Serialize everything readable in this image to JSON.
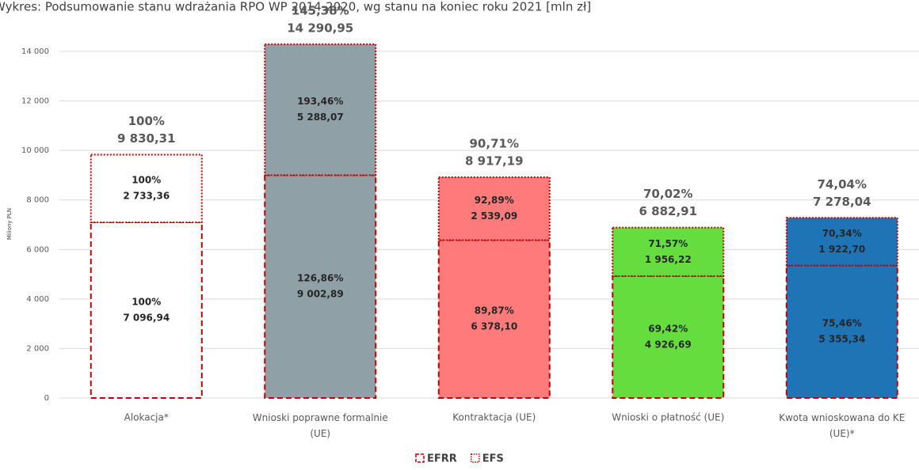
{
  "chart_data": {
    "type": "stacked_bar",
    "title": "Wykres: Podsumowanie stanu wdrażania RPO WP 2014-2020, wg stanu na koniec roku 2021 [mln zł]",
    "y_label": "Miliony PLN",
    "categories": [
      "Alokacja*",
      "Wnioski poprawne formalnie (UE)",
      "Kontraktacja (UE)",
      "Wnioski o płatność (UE)",
      "Kwota wnioskowana do KE (UE)*"
    ],
    "bar_colors": [
      "#ffffff",
      "#8fa0a6",
      "#ff7b7b",
      "#66dd3f",
      "#1f74b5"
    ],
    "series": [
      {
        "name": "EFRR",
        "color": "#c00000",
        "border": "dashed",
        "values": [
          7096.94,
          9002.89,
          6378.1,
          4926.69,
          5355.34
        ],
        "value_labels": [
          "7 096,94",
          "9 002,89",
          "6 378,10",
          "4 926,69",
          "5 355,34"
        ],
        "percent_labels": [
          "100%",
          "126,86%",
          "89,87%",
          "69,42%",
          "75,46%"
        ]
      },
      {
        "name": "EFS",
        "color": "#c00000",
        "border": "dotted",
        "values": [
          2733.36,
          5288.07,
          2539.09,
          1956.22,
          1922.7
        ],
        "value_labels": [
          "2 733,36",
          "5 288,07",
          "2 539,09",
          "1 956,22",
          "1 922,70"
        ],
        "percent_labels": [
          "100%",
          "193,46%",
          "92,89%",
          "71,57%",
          "70,34%"
        ]
      }
    ],
    "totals": [
      9830.31,
      14290.95,
      8917.19,
      6882.91,
      7278.04
    ],
    "total_labels": [
      "9 830,31",
      "14 290,95",
      "8 917,19",
      "6 882,91",
      "7 278,04"
    ],
    "total_percent_labels": [
      "100%",
      "145,38%",
      "90,71%",
      "70,02%",
      "74,04%"
    ],
    "ylim": [
      0,
      14000
    ],
    "yticks": [
      0,
      {
        "value": 2000,
        "label": "2 000"
      },
      {
        "value": 4000,
        "label": "4 000"
      },
      {
        "value": 6000,
        "label": "6 000"
      },
      {
        "value": 8000,
        "label": "8 000"
      },
      {
        "value": 10000,
        "label": "10 000"
      },
      {
        "value": 12000,
        "label": "12 000"
      },
      {
        "value": 14000,
        "label": "14 000"
      }
    ],
    "grid": true,
    "legend": "bottom"
  }
}
